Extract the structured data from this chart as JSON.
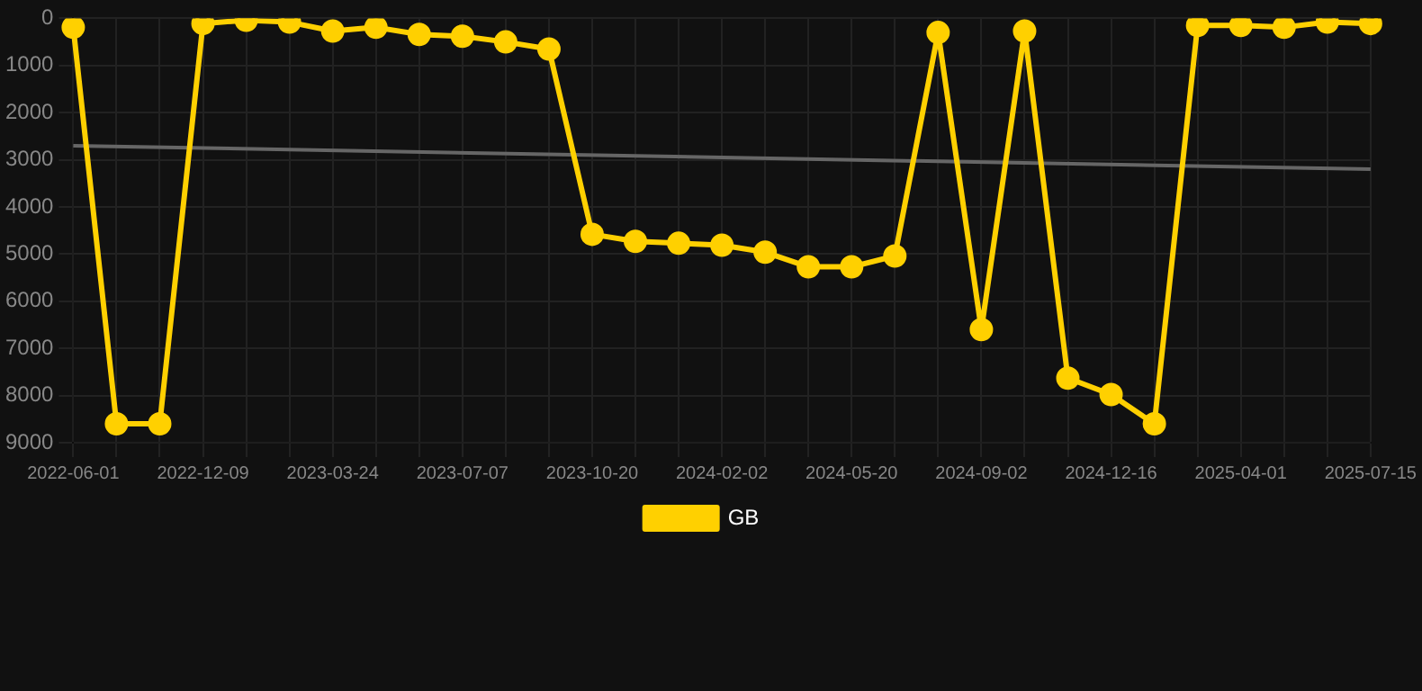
{
  "chart_data": {
    "type": "line",
    "categories": [
      "2022-06-01",
      null,
      null,
      "2022-12-09",
      null,
      null,
      "2023-03-24",
      null,
      null,
      "2023-07-07",
      null,
      null,
      "2023-10-20",
      null,
      null,
      "2024-02-02",
      null,
      null,
      "2024-05-20",
      null,
      null,
      "2024-09-02",
      null,
      null,
      "2024-12-16",
      null,
      null,
      "2025-04-01",
      null,
      null,
      "2025-07-15"
    ],
    "series": [
      {
        "name": "GB",
        "color": "#ffd000",
        "values": [
          190,
          8600,
          8600,
          110,
          40,
          80,
          270,
          190,
          340,
          380,
          500,
          650,
          4580,
          4730,
          4770,
          4810,
          4960,
          5270,
          5270,
          5040,
          300,
          6600,
          270,
          7630,
          7980,
          8600,
          150,
          150,
          190,
          80,
          110
        ]
      },
      {
        "type": "line",
        "color": "#666666",
        "marker": "none",
        "values": [
          2700,
          null,
          null,
          null,
          null,
          null,
          null,
          null,
          null,
          null,
          null,
          null,
          null,
          null,
          null,
          null,
          null,
          null,
          null,
          null,
          null,
          null,
          null,
          null,
          null,
          null,
          null,
          null,
          null,
          null,
          3200
        ]
      }
    ],
    "ylim": [
      9000,
      0
    ],
    "yticks": [
      0,
      1000,
      2000,
      3000,
      4000,
      5000,
      6000,
      7000,
      8000,
      9000
    ],
    "grid": true,
    "legend": "bottom",
    "marker": "circle",
    "line_style": "solid"
  }
}
